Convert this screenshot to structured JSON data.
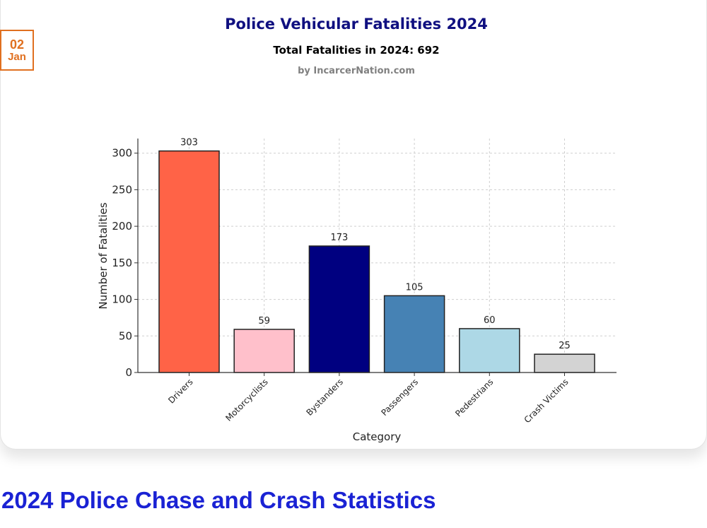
{
  "date_badge": {
    "day": "02",
    "month": "Jan"
  },
  "article_title": "2024 Police Chase and Crash Statistics",
  "colors": {
    "badge": "#e07020",
    "heading": "#1a22d4",
    "chart_title": "#101080"
  },
  "chart_data": {
    "type": "bar",
    "title": "Police Vehicular Fatalities 2024",
    "subtitle": "Total Fatalities in 2024: 692",
    "credit": "by IncarcerNation.com",
    "categories": [
      "Drivers",
      "Motorcyclists",
      "Bystanders",
      "Passengers",
      "Pedestrians",
      "Crash Victims"
    ],
    "values": [
      303,
      59,
      173,
      105,
      60,
      25
    ],
    "value_labels": [
      "303",
      "59",
      "173",
      "105",
      "60",
      "25"
    ],
    "bar_colors": [
      "#FF6347",
      "#FFC0CB",
      "#000080",
      "#4682B4",
      "#ADD8E6",
      "#D3D3D3"
    ],
    "xlabel": "Category",
    "ylabel": "Number of Fatalities",
    "ylim": [
      0,
      320
    ],
    "yticks": [
      0,
      50,
      100,
      150,
      200,
      250,
      300
    ],
    "ytick_labels": [
      "0",
      "50",
      "100",
      "150",
      "200",
      "250",
      "300"
    ],
    "grid": true
  }
}
